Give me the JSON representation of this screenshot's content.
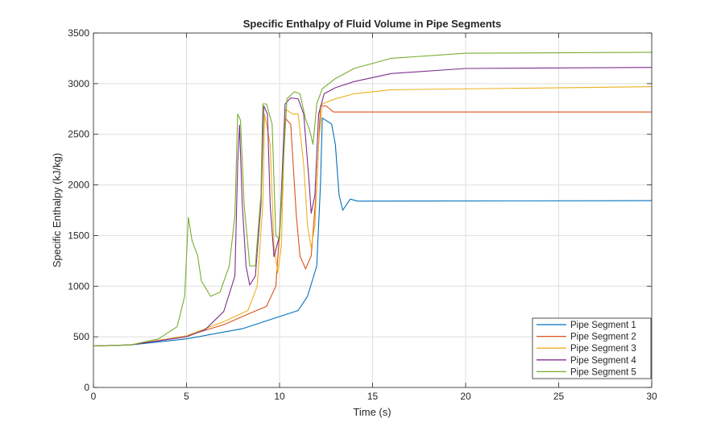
{
  "chart_data": {
    "type": "line",
    "title": "Specific Enthalpy of Fluid Volume in Pipe Segments",
    "xlabel": "Time (s)",
    "ylabel": "Specific Enthalpy (kJ/kg)",
    "xlim": [
      0,
      30
    ],
    "ylim": [
      0,
      3500
    ],
    "xticks": [
      0,
      5,
      10,
      15,
      20,
      25,
      30
    ],
    "yticks": [
      0,
      500,
      1000,
      1500,
      2000,
      2500,
      3000,
      3500
    ],
    "grid": true,
    "legend_position": "bottom-right",
    "series": [
      {
        "name": "Pipe Segment 1",
        "color": "#0072BD",
        "x": [
          0,
          2,
          5,
          8,
          10,
          11,
          11.5,
          12,
          12.2,
          12.3,
          12.8,
          13.0,
          13.2,
          13.4,
          13.8,
          14.2,
          30
        ],
        "y": [
          410,
          420,
          480,
          580,
          700,
          760,
          900,
          1200,
          2000,
          2660,
          2600,
          2400,
          1900,
          1750,
          1860,
          1840,
          1845
        ]
      },
      {
        "name": "Pipe Segment 2",
        "color": "#D95319",
        "x": [
          0,
          2,
          5,
          7,
          8.5,
          9.3,
          9.8,
          10.1,
          10.3,
          10.6,
          10.9,
          11.1,
          11.4,
          11.7,
          12.0,
          12.2,
          12.5,
          12.9,
          13.3,
          30
        ],
        "y": [
          410,
          420,
          510,
          620,
          740,
          800,
          1000,
          1800,
          2660,
          2600,
          1700,
          1300,
          1170,
          1300,
          2000,
          2780,
          2780,
          2720,
          2720,
          2720
        ]
      },
      {
        "name": "Pipe Segment 3",
        "color": "#EDB120",
        "x": [
          0,
          2,
          5,
          7,
          8.3,
          8.8,
          9.1,
          9.2,
          9.5,
          9.7,
          9.9,
          10.1,
          10.3,
          10.7,
          11.0,
          11.3,
          11.5,
          11.7,
          11.9,
          12.1,
          12.3,
          13,
          14,
          16,
          30
        ],
        "y": [
          410,
          420,
          510,
          650,
          760,
          1000,
          1800,
          2700,
          2400,
          1400,
          1130,
          1400,
          2750,
          2700,
          2700,
          2200,
          1600,
          1380,
          1600,
          2400,
          2800,
          2850,
          2900,
          2940,
          2970
        ]
      },
      {
        "name": "Pipe Segment 4",
        "color": "#7E2F8E",
        "x": [
          0,
          2,
          5,
          6,
          7,
          7.6,
          7.75,
          7.85,
          8.0,
          8.2,
          8.4,
          8.7,
          9.0,
          9.15,
          9.35,
          9.5,
          9.7,
          10,
          10.3,
          10.6,
          11,
          11.3,
          11.6,
          11.7,
          11.9,
          12.1,
          12.4,
          13,
          14,
          16,
          20,
          30
        ],
        "y": [
          410,
          420,
          500,
          570,
          750,
          1100,
          2200,
          2590,
          1800,
          1200,
          1010,
          1100,
          1800,
          2780,
          2700,
          1800,
          1290,
          1500,
          2800,
          2860,
          2850,
          2700,
          2000,
          1720,
          1900,
          2700,
          2900,
          2960,
          3020,
          3100,
          3150,
          3160
        ]
      },
      {
        "name": "Pipe Segment 5",
        "color": "#77AC30",
        "x": [
          0,
          2,
          3.5,
          4.5,
          4.9,
          5.1,
          5.3,
          5.6,
          5.8,
          6.3,
          6.8,
          7.3,
          7.6,
          7.75,
          7.9,
          8.1,
          8.4,
          8.7,
          9.0,
          9.1,
          9.3,
          9.6,
          9.8,
          10.0,
          10.2,
          10.4,
          10.8,
          11.1,
          11.4,
          11.6,
          11.8,
          12.0,
          12.3,
          13,
          14,
          16,
          20,
          30
        ],
        "y": [
          410,
          420,
          480,
          600,
          900,
          1680,
          1450,
          1300,
          1050,
          900,
          940,
          1200,
          1700,
          2700,
          2640,
          1800,
          1200,
          1200,
          1900,
          2800,
          2800,
          2600,
          1500,
          1460,
          2200,
          2850,
          2920,
          2900,
          2650,
          2550,
          2400,
          2800,
          2950,
          3050,
          3150,
          3250,
          3300,
          3310
        ]
      }
    ]
  }
}
